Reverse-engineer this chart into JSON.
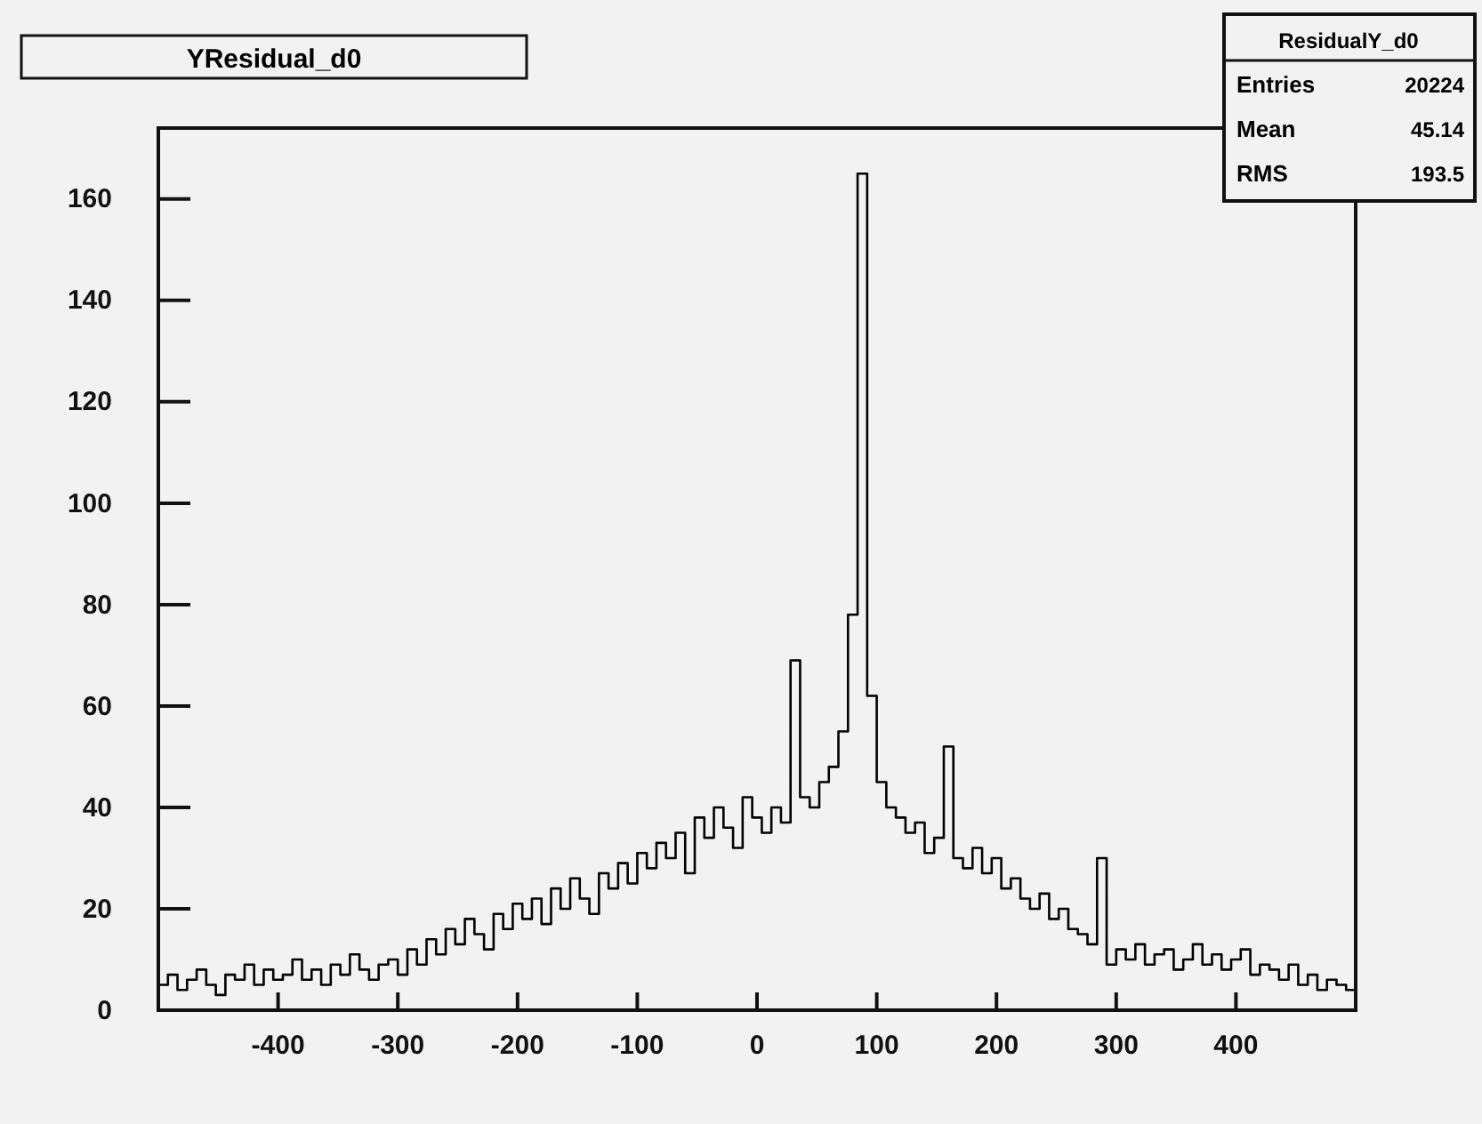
{
  "chart_data": {
    "type": "histogram",
    "title": "YResidual_d0",
    "annotations": [
      "ResidualY_d0",
      "Entries",
      "20224",
      "Mean",
      "45.14",
      "RMS",
      "193.5"
    ],
    "bins": [
      -500,
      -492,
      -484,
      -476,
      -468,
      -460,
      -452,
      -444,
      -436,
      -428,
      -420,
      -412,
      -404,
      -396,
      -388,
      -380,
      -372,
      -364,
      -356,
      -348,
      -340,
      -332,
      -324,
      -316,
      -308,
      -300,
      -292,
      -284,
      -276,
      -268,
      -260,
      -252,
      -244,
      -236,
      -228,
      -220,
      -212,
      -204,
      -196,
      -188,
      -180,
      -172,
      -164,
      -156,
      -148,
      -140,
      -132,
      -124,
      -116,
      -108,
      -100,
      -92,
      -84,
      -76,
      -68,
      -60,
      -52,
      -44,
      -36,
      -28,
      -20,
      -12,
      -4,
      4,
      12,
      20,
      28,
      36,
      44,
      52,
      60,
      68,
      76,
      84,
      92,
      100,
      108,
      116,
      124,
      132,
      140,
      148,
      156,
      164,
      172,
      180,
      188,
      196,
      204,
      212,
      220,
      228,
      236,
      244,
      252,
      260,
      268,
      276,
      284,
      292,
      300,
      308,
      316,
      324,
      332,
      340,
      348,
      356,
      364,
      372,
      380,
      388,
      396,
      404,
      412,
      420,
      428,
      436,
      444,
      452,
      460,
      468,
      476,
      484,
      492,
      500
    ],
    "values": [
      5,
      7,
      4,
      6,
      8,
      5,
      3,
      7,
      6,
      9,
      5,
      8,
      6,
      7,
      10,
      6,
      8,
      5,
      9,
      7,
      11,
      8,
      6,
      9,
      10,
      7,
      12,
      9,
      14,
      11,
      16,
      13,
      18,
      15,
      12,
      19,
      16,
      21,
      18,
      22,
      17,
      24,
      20,
      26,
      22,
      19,
      27,
      24,
      29,
      25,
      31,
      28,
      33,
      30,
      35,
      27,
      38,
      34,
      40,
      36,
      32,
      42,
      38,
      35,
      40,
      37,
      69,
      42,
      40,
      45,
      48,
      55,
      78,
      165,
      62,
      45,
      40,
      38,
      35,
      37,
      31,
      34,
      52,
      30,
      28,
      32,
      27,
      30,
      24,
      26,
      22,
      20,
      23,
      18,
      20,
      16,
      15,
      13,
      30,
      9,
      12,
      10,
      13,
      9,
      11,
      12,
      8,
      10,
      13,
      9,
      11,
      8,
      10,
      12,
      7,
      9,
      8,
      6,
      9,
      5,
      7,
      4,
      6,
      5,
      4
    ],
    "color": "#000000",
    "xlim": [
      -500,
      500
    ],
    "xticks": [
      -400,
      -300,
      -200,
      -100,
      0,
      100,
      200,
      300,
      400
    ],
    "ylim": [
      0,
      174
    ],
    "yticks": [
      0,
      20,
      40,
      60,
      80,
      100,
      120,
      140,
      160
    ]
  }
}
